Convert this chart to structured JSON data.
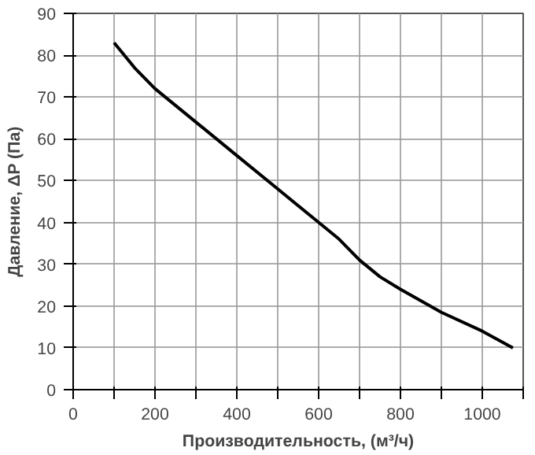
{
  "chart_data": {
    "type": "line",
    "xlabel": "Производительность, (м³/ч)",
    "ylabel": "Давление, ΔP (Па)",
    "x": [
      100,
      150,
      200,
      300,
      400,
      500,
      600,
      650,
      700,
      750,
      800,
      900,
      1000,
      1075
    ],
    "series": [
      {
        "color": "#000000",
        "values": [
          83,
          77,
          72,
          64,
          56,
          48,
          40,
          36,
          31,
          27,
          24,
          18.5,
          14,
          10
        ]
      }
    ],
    "xlim": [
      0,
      1100
    ],
    "ylim": [
      0,
      90
    ],
    "xticks": [
      0,
      {
        "value": 100,
        "label": null
      },
      200,
      {
        "value": 300,
        "label": null
      },
      400,
      {
        "value": 500,
        "label": null
      },
      600,
      {
        "value": 700,
        "label": null
      },
      800,
      {
        "value": 900,
        "label": null
      },
      1000,
      {
        "value": 1100,
        "label": null
      }
    ],
    "yticks": [
      0,
      10,
      20,
      30,
      40,
      50,
      60,
      70,
      80,
      90
    ],
    "grid": true,
    "marker": "none",
    "line_style": "solid"
  }
}
